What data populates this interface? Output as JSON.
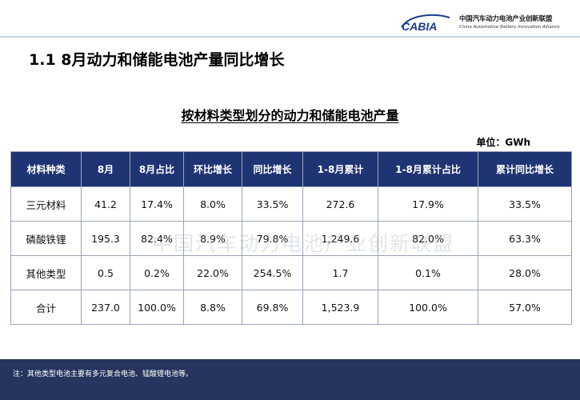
{
  "header": {
    "logo_text": "CABIA",
    "logo_cn": "中国汽车动力电池产业创新联盟",
    "logo_en": "China Automotive Battery Innovation Alliance"
  },
  "page_title": "1.1 8月动力和储能电池产量同比增长",
  "table_title": "按材料类型划分的动力和储能电池产量",
  "unit": "单位：GWh",
  "table": {
    "columns": [
      "材料种类",
      "8月",
      "8月占比",
      "环比增长",
      "同比增长",
      "1-8月累计",
      "1-8月累计占比",
      "累计同比增长"
    ],
    "rows": [
      [
        "三元材料",
        "41.2",
        "17.4%",
        "8.0%",
        "33.5%",
        "272.6",
        "17.9%",
        "33.5%"
      ],
      [
        "磷酸铁锂",
        "195.3",
        "82.4%",
        "8.9%",
        "79.8%",
        "1,249.6",
        "82.0%",
        "63.3%"
      ],
      [
        "其他类型",
        "0.5",
        "0.2%",
        "22.0%",
        "254.5%",
        "1.7",
        "0.1%",
        "28.0%"
      ],
      [
        "合计",
        "237.0",
        "100.0%",
        "8.8%",
        "69.8%",
        "1,523.9",
        "100.0%",
        "57.0%"
      ]
    ]
  },
  "watermark": "中国汽车动力电池产业创新联盟",
  "footer_note": "注：其他类型电池主要有多元复合电池、锰酸锂电池等。",
  "colors": {
    "header_bg": "#1f3473",
    "footer_bg": "#25355e",
    "rule": "#c9d3e6"
  }
}
